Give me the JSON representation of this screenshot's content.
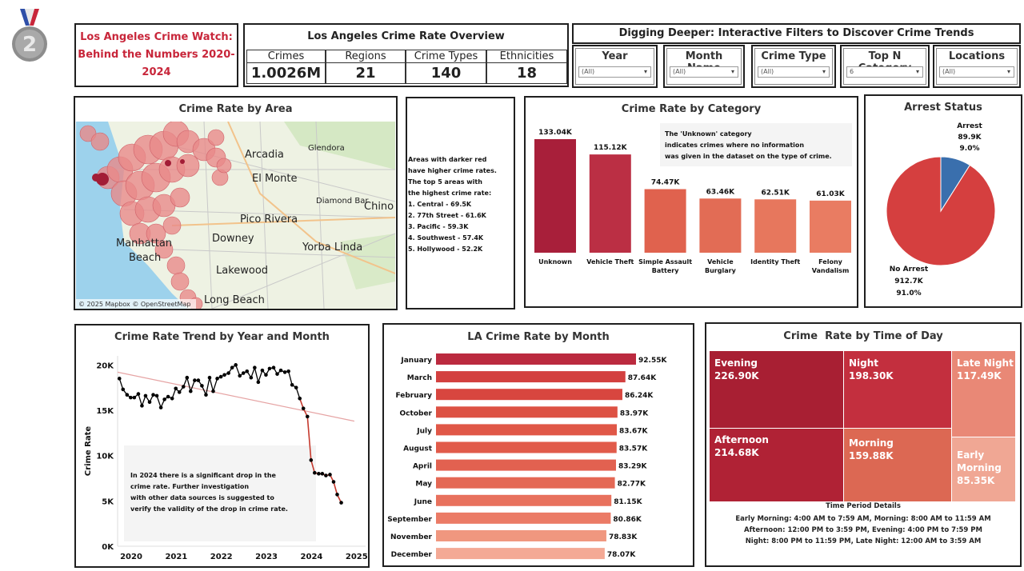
{
  "header": {
    "title": "Los Angeles Crime Watch: Behind the Numbers 2020-2024",
    "overview_title": "Los Angeles Crime Rate Overview",
    "kpis": [
      {
        "label": "Crimes",
        "value": "1.0026M"
      },
      {
        "label": "Regions",
        "value": "21"
      },
      {
        "label": "Crime Types",
        "value": "140"
      },
      {
        "label": "Ethnicities",
        "value": "18"
      }
    ],
    "filters_title": "Digging Deeper: Interactive Filters to Discover Crime Trends",
    "filters": [
      {
        "label": "Year",
        "value": "(All)"
      },
      {
        "label": "Month Name",
        "value": "(All)"
      },
      {
        "label": "Crime Type",
        "value": "(All)"
      },
      {
        "label": "Top N Category",
        "value": "6"
      },
      {
        "label": "Locations",
        "value": "(All)"
      }
    ]
  },
  "map": {
    "title": "Crime Rate by Area",
    "places": [
      "Arcadia",
      "Glendora",
      "El Monte",
      "Diamond Bar",
      "Chino",
      "Pico Rivera",
      "Downey",
      "Yorba Linda",
      "Beach",
      "Lakewood",
      "Long Beach",
      "Manhattan"
    ],
    "attribution": "© 2025 Mapbox  © OpenStreetMap"
  },
  "area_note": [
    "Areas with darker red",
    "have higher crime rates.",
    "The top 5 areas with",
    "the highest crime rate:",
    "1. Central - 69.5K",
    "2. 77th Street - 61.6K",
    "3. Pacific - 59.3K",
    "4. Southwest - 57.4K",
    "5. Hollywood - 52.2K"
  ],
  "arrest": {
    "title": "Arrest Status",
    "arrest_label": "Arrest",
    "arrest_value": "89.9K",
    "arrest_pct": "9.0%",
    "no_arrest_label": "No Arrest",
    "no_arrest_value": "912.7K",
    "no_arrest_pct": "91.0%"
  },
  "category_note": [
    "The 'Unknown' category",
    "indicates crimes where no information",
    "was given in the dataset on the type of crime."
  ],
  "trend_note": [
    "In 2024 there is a significant drop in the",
    "crime rate. Further investigation",
    "with other data sources is suggested to",
    "verify the validity of the drop in crime rate."
  ],
  "tod_note": {
    "title": "Time Period Details",
    "lines": [
      "Early Morning: 4:00 AM to 7:59 AM, Morning: 8:00 AM to 11:59 AM",
      "Afternoon: 12:00 PM to 3:59 PM, Evening: 4:00 PM to 7:59 PM",
      "Night: 8:00 PM to 11:59 PM, Late Night: 12:00 AM to 3:59 AM"
    ]
  },
  "chart_data": [
    {
      "type": "bar",
      "title": "Crime Rate by Category",
      "categories": [
        "Unknown",
        "Vehicle Theft",
        "Simple Assault Battery",
        "Vehicle Burglary",
        "Identity Theft",
        "Felony Vandalism"
      ],
      "values": [
        133040,
        115120,
        74470,
        63460,
        62510,
        61030
      ],
      "labels": [
        "133.04K",
        "115.12K",
        "74.47K",
        "63.46K",
        "62.51K",
        "61.03K"
      ],
      "colors": [
        "#a81f3a",
        "#bb2f44",
        "#e0624e",
        "#e26c55",
        "#e7775d",
        "#e97c62"
      ]
    },
    {
      "type": "pie",
      "title": "Arrest Status",
      "categories": [
        "Arrest",
        "No Arrest"
      ],
      "values": [
        89900,
        912700
      ],
      "colors": [
        "#3a6fad",
        "#d53f3f"
      ]
    },
    {
      "type": "line",
      "title": "Crime Rate Trend by Year and Month",
      "ylabel": "Crime Rate",
      "ylim": [
        0,
        21000
      ],
      "x_ticks": [
        "2020",
        "2021",
        "2022",
        "2023",
        "2024",
        "2025"
      ],
      "y_ticks": [
        "20K",
        "15K",
        "10K",
        "5K",
        "0K"
      ],
      "x": [
        2020.04,
        2020.12,
        2020.21,
        2020.29,
        2020.37,
        2020.46,
        2020.54,
        2020.62,
        2020.71,
        2020.79,
        2020.87,
        2020.96,
        2021.04,
        2021.12,
        2021.21,
        2021.29,
        2021.37,
        2021.46,
        2021.54,
        2021.62,
        2021.71,
        2021.79,
        2021.87,
        2021.96,
        2022.04,
        2022.12,
        2022.21,
        2022.29,
        2022.37,
        2022.46,
        2022.54,
        2022.62,
        2022.71,
        2022.79,
        2022.87,
        2022.96,
        2023.04,
        2023.12,
        2023.21,
        2023.29,
        2023.37,
        2023.46,
        2023.54,
        2023.62,
        2023.71,
        2023.79,
        2023.87,
        2023.96,
        2024.04,
        2024.12,
        2024.21,
        2024.29,
        2024.37,
        2024.46,
        2024.54,
        2024.62,
        2024.71,
        2024.79,
        2024.87,
        2024.96
      ],
      "values": [
        18500,
        17300,
        16700,
        16400,
        16400,
        16800,
        15500,
        16600,
        15900,
        16700,
        16600,
        15300,
        16200,
        16500,
        16300,
        17400,
        17000,
        17600,
        18600,
        17100,
        18300,
        18300,
        17700,
        16700,
        18600,
        17100,
        18500,
        18700,
        18900,
        19100,
        19700,
        20000,
        18800,
        19100,
        19300,
        18600,
        19700,
        18100,
        19400,
        18900,
        19600,
        19700,
        19000,
        19400,
        19200,
        19300,
        17800,
        17500,
        16300,
        15200,
        14300,
        9500,
        8100,
        8000,
        8000,
        7800,
        7900,
        7100,
        5700,
        4800
      ],
      "trend_line": {
        "start": [
          2020.0,
          19200
        ],
        "end": [
          2025.25,
          13800
        ]
      },
      "color": "#c53a2e"
    },
    {
      "type": "bar",
      "orientation": "horizontal",
      "title": "LA Crime Rate by Month",
      "categories": [
        "January",
        "March",
        "February",
        "October",
        "July",
        "August",
        "April",
        "May",
        "June",
        "September",
        "November",
        "December"
      ],
      "values": [
        92550,
        87640,
        86240,
        83970,
        83670,
        83570,
        83290,
        82770,
        81150,
        80860,
        78830,
        78070
      ],
      "labels": [
        "92.55K",
        "87.64K",
        "86.24K",
        "83.97K",
        "83.67K",
        "83.57K",
        "83.29K",
        "82.77K",
        "81.15K",
        "80.86K",
        "78.83K",
        "78.07K"
      ],
      "colors": [
        "#bb2a3f",
        "#d3403f",
        "#d8463f",
        "#dd5143",
        "#e05747",
        "#e15b4a",
        "#e26150",
        "#e46854",
        "#e8715d",
        "#eb7b66",
        "#f0977f",
        "#f4a995"
      ]
    },
    {
      "type": "treemap",
      "title": "Crime  Rate by Time of Day",
      "items": [
        {
          "name": "Evening",
          "label": "226.90K",
          "value": 226900,
          "color": "#a81f33"
        },
        {
          "name": "Night",
          "label": "198.30K",
          "value": 198300,
          "color": "#c32f3e"
        },
        {
          "name": "Late Night",
          "label": "117.49K",
          "value": 117490,
          "color": "#e98876"
        },
        {
          "name": "Afternoon",
          "label": "214.68K",
          "value": 214680,
          "color": "#b02235"
        },
        {
          "name": "Morning",
          "label": "159.88K",
          "value": 159880,
          "color": "#dc6853"
        },
        {
          "name": "Early Morning",
          "label": "85.35K",
          "value": 85350,
          "color": "#f0a794"
        }
      ]
    }
  ],
  "colors": {
    "title_red": "#c8263a",
    "frame": "#1f1f1f"
  }
}
